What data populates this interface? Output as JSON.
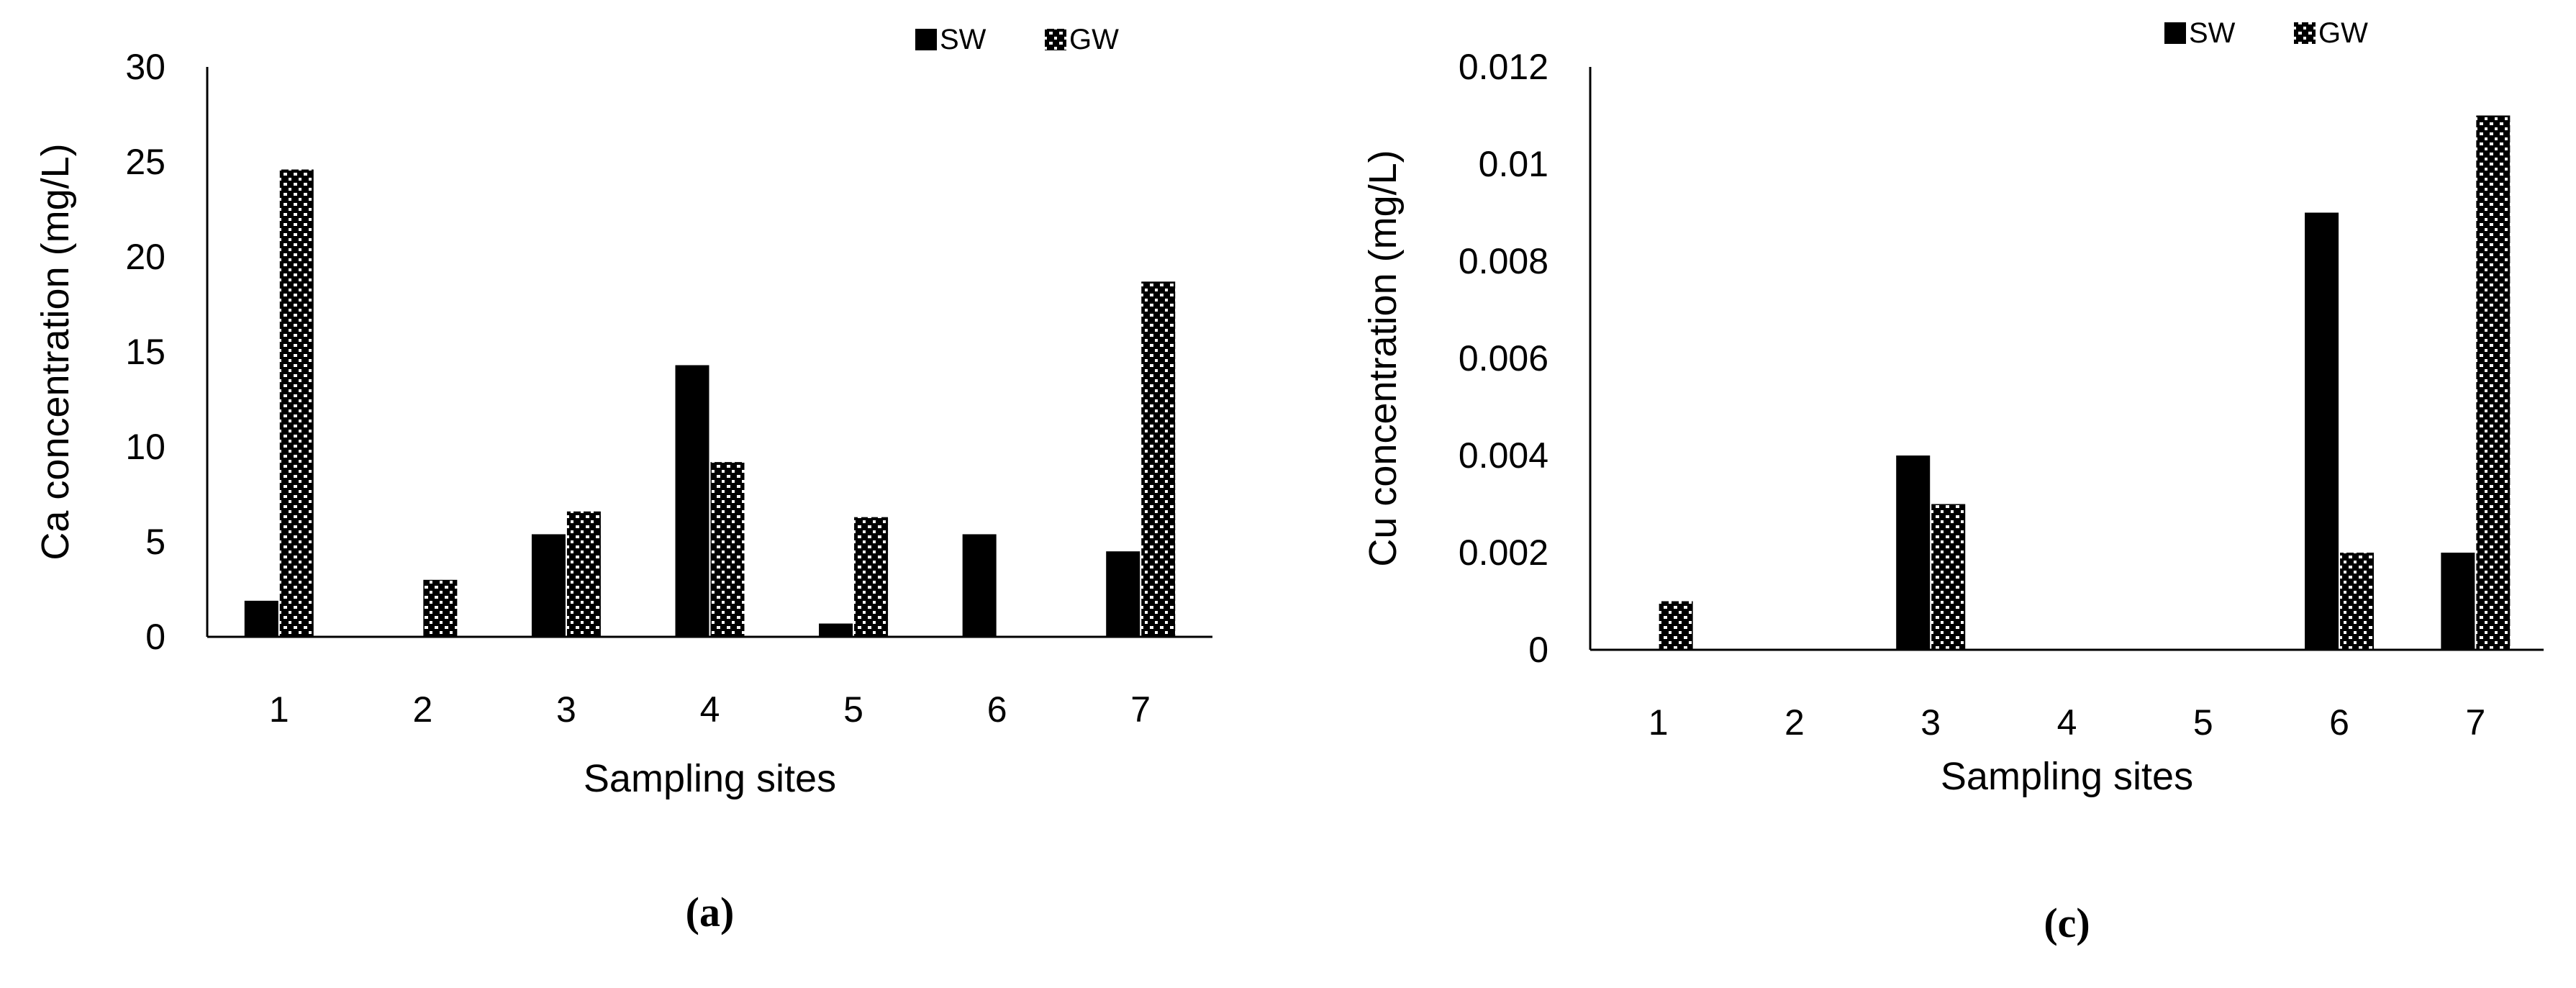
{
  "chart_data": [
    {
      "type": "bar",
      "panel_label": "(a)",
      "title": "",
      "xlabel": "Sampling sites",
      "ylabel": "Ca concentration (mg/L)",
      "categories": [
        "1",
        "2",
        "3",
        "4",
        "5",
        "6",
        "7"
      ],
      "ylim": [
        0,
        30
      ],
      "yticks": [
        "0",
        "5",
        "10",
        "15",
        "20",
        "25",
        "30"
      ],
      "grid": false,
      "legend_position": "top-right",
      "series": [
        {
          "name": "SW",
          "pattern": "solid",
          "color": "#000000",
          "values": [
            1.9,
            0,
            5.4,
            14.3,
            0.7,
            5.4,
            4.5
          ]
        },
        {
          "name": "GW",
          "pattern": "checker",
          "color": "#000000",
          "values": [
            24.6,
            3.0,
            6.6,
            9.2,
            6.3,
            0,
            18.7
          ]
        }
      ]
    },
    {
      "type": "bar",
      "panel_label": "(c)",
      "title": "",
      "xlabel": "Sampling sites",
      "ylabel": "Cu concentration (mg/L)",
      "categories": [
        "1",
        "2",
        "3",
        "4",
        "5",
        "6",
        "7"
      ],
      "ylim": [
        0,
        0.012
      ],
      "yticks": [
        "0",
        "0.002",
        "0.004",
        "0.006",
        "0.008",
        "0.01",
        "0.012"
      ],
      "grid": false,
      "legend_position": "top-right",
      "series": [
        {
          "name": "SW",
          "pattern": "solid",
          "color": "#000000",
          "values": [
            0,
            0,
            0.004,
            0,
            0,
            0.009,
            0.002
          ]
        },
        {
          "name": "GW",
          "pattern": "checker",
          "color": "#000000",
          "values": [
            0.001,
            0,
            0.003,
            0,
            0,
            0.002,
            0.011
          ]
        }
      ]
    }
  ]
}
